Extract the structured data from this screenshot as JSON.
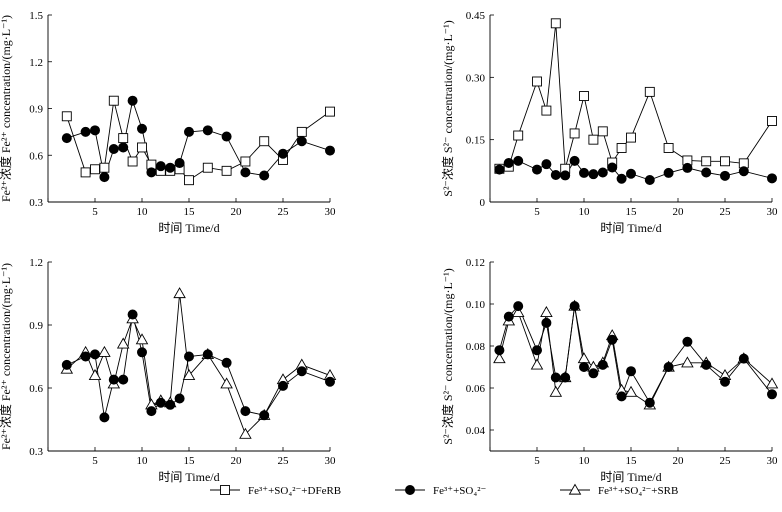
{
  "chart_data": [
    {
      "type": "line",
      "panel": "top-left",
      "xlabel": "时间 Time/d",
      "ylabel": "Fe²⁺浓度 Fe²⁺ concentration/(mg·L⁻¹)",
      "xlim": [
        0,
        30
      ],
      "ylim": [
        0.3,
        1.5
      ],
      "xticks": [
        0,
        5,
        10,
        15,
        20,
        25,
        30
      ],
      "yticks": [
        0.3,
        0.6,
        0.9,
        1.2,
        1.5
      ],
      "ytick_labels": [
        "0.3",
        "0.6",
        "0.9",
        "1.2",
        "1.5"
      ],
      "series": [
        {
          "name": "Fe³⁺+SO₄²⁻+DFeRB",
          "marker": "square",
          "x": [
            2,
            4,
            5,
            6,
            7,
            8,
            9,
            10,
            11,
            12,
            13,
            14,
            15,
            17,
            19,
            21,
            23,
            25,
            27,
            30
          ],
          "y": [
            0.85,
            0.49,
            0.51,
            0.52,
            0.95,
            0.71,
            0.56,
            0.65,
            0.54,
            0.5,
            0.5,
            0.51,
            0.44,
            0.52,
            0.5,
            0.56,
            0.69,
            0.57,
            0.75,
            0.88
          ]
        },
        {
          "name": "Fe³⁺+SO₄²⁻",
          "marker": "circle",
          "x": [
            2,
            4,
            5,
            6,
            7,
            8,
            9,
            10,
            11,
            12,
            13,
            14,
            15,
            17,
            19,
            21,
            23,
            25,
            27,
            30
          ],
          "y": [
            0.71,
            0.75,
            0.76,
            0.46,
            0.64,
            0.65,
            0.95,
            0.77,
            0.49,
            0.53,
            0.52,
            0.55,
            0.75,
            0.76,
            0.72,
            0.49,
            0.47,
            0.61,
            0.69,
            0.63
          ]
        }
      ]
    },
    {
      "type": "line",
      "panel": "top-right",
      "xlabel": "时间 Time/d",
      "ylabel": "S²⁻浓度 S²⁻ concentration/(mg·L⁻¹)",
      "xlim": [
        0,
        30
      ],
      "ylim": [
        0,
        0.45
      ],
      "xticks": [
        0,
        5,
        10,
        15,
        20,
        25,
        30
      ],
      "yticks": [
        0,
        0.15,
        0.3,
        0.45
      ],
      "ytick_labels": [
        "0",
        "0.15",
        "0.30",
        "0.45"
      ],
      "series": [
        {
          "name": "Fe³⁺+SO₄²⁻+DFeRB",
          "marker": "square",
          "x": [
            1,
            2,
            3,
            5,
            6,
            7,
            8,
            9,
            10,
            11,
            12,
            13,
            14,
            15,
            17,
            19,
            21,
            23,
            25,
            27,
            30
          ],
          "y": [
            0.08,
            0.085,
            0.16,
            0.29,
            0.22,
            0.43,
            0.08,
            0.165,
            0.255,
            0.15,
            0.17,
            0.095,
            0.13,
            0.155,
            0.265,
            0.13,
            0.1,
            0.098,
            0.098,
            0.093,
            0.195
          ]
        },
        {
          "name": "Fe³⁺+SO₄²⁻",
          "marker": "circle",
          "x": [
            1,
            2,
            3,
            5,
            6,
            7,
            8,
            9,
            10,
            11,
            12,
            13,
            14,
            15,
            17,
            19,
            21,
            23,
            25,
            27,
            30
          ],
          "y": [
            0.078,
            0.094,
            0.099,
            0.078,
            0.091,
            0.065,
            0.064,
            0.099,
            0.07,
            0.067,
            0.071,
            0.083,
            0.056,
            0.068,
            0.053,
            0.07,
            0.082,
            0.071,
            0.063,
            0.074,
            0.057
          ]
        }
      ]
    },
    {
      "type": "line",
      "panel": "bottom-left",
      "xlabel": "时间 Time/d",
      "ylabel": "Fe²⁺浓度 Fe²⁺ concentration/(mg·L⁻¹)",
      "xlim": [
        0,
        30
      ],
      "ylim": [
        0.3,
        1.2
      ],
      "xticks": [
        0,
        5,
        10,
        15,
        20,
        25,
        30
      ],
      "yticks": [
        0.3,
        0.6,
        0.9,
        1.2
      ],
      "ytick_labels": [
        "0.3",
        "0.6",
        "0.9",
        "1.2"
      ],
      "series": [
        {
          "name": "Fe³⁺+SO₄²⁻+SRB",
          "marker": "triangle",
          "x": [
            2,
            4,
            5,
            6,
            7,
            8,
            9,
            10,
            11,
            12,
            13,
            14,
            15,
            17,
            19,
            21,
            23,
            25,
            27,
            30
          ],
          "y": [
            0.69,
            0.77,
            0.66,
            0.77,
            0.62,
            0.81,
            0.93,
            0.83,
            0.52,
            0.54,
            0.53,
            1.05,
            0.66,
            0.76,
            0.62,
            0.38,
            0.47,
            0.64,
            0.71,
            0.66
          ]
        },
        {
          "name": "Fe³⁺+SO₄²⁻",
          "marker": "circle",
          "x": [
            2,
            4,
            5,
            6,
            7,
            8,
            9,
            10,
            11,
            12,
            13,
            14,
            15,
            17,
            19,
            21,
            23,
            25,
            27,
            30
          ],
          "y": [
            0.71,
            0.75,
            0.76,
            0.46,
            0.64,
            0.64,
            0.95,
            0.77,
            0.49,
            0.53,
            0.52,
            0.55,
            0.75,
            0.76,
            0.72,
            0.49,
            0.47,
            0.61,
            0.68,
            0.63
          ]
        }
      ]
    },
    {
      "type": "line",
      "panel": "bottom-right",
      "xlabel": "时间 Time/d",
      "ylabel": "S²⁻浓度 S²⁻ concentration/(mg·L⁻¹)",
      "xlim": [
        0,
        30
      ],
      "ylim": [
        0.03,
        0.12
      ],
      "xticks": [
        0,
        5,
        10,
        15,
        20,
        25,
        30
      ],
      "yticks": [
        0.04,
        0.06,
        0.08,
        0.1,
        0.12
      ],
      "ytick_labels": [
        "0.04",
        "0.06",
        "0.08",
        "0.10",
        "0.12"
      ],
      "series": [
        {
          "name": "Fe³⁺+SO₄²⁻+SRB",
          "marker": "triangle",
          "x": [
            1,
            2,
            3,
            5,
            6,
            7,
            8,
            9,
            10,
            11,
            12,
            13,
            14,
            15,
            17,
            19,
            21,
            23,
            25,
            27,
            30
          ],
          "y": [
            0.074,
            0.092,
            0.096,
            0.071,
            0.096,
            0.058,
            0.065,
            0.099,
            0.074,
            0.07,
            0.072,
            0.085,
            0.059,
            0.058,
            0.052,
            0.07,
            0.072,
            0.072,
            0.066,
            0.074,
            0.062
          ]
        },
        {
          "name": "Fe³⁺+SO₄²⁻",
          "marker": "circle",
          "x": [
            1,
            2,
            3,
            5,
            6,
            7,
            8,
            9,
            10,
            11,
            12,
            13,
            14,
            15,
            17,
            19,
            21,
            23,
            25,
            27,
            30
          ],
          "y": [
            0.078,
            0.094,
            0.099,
            0.078,
            0.091,
            0.065,
            0.065,
            0.099,
            0.07,
            0.067,
            0.071,
            0.083,
            0.056,
            0.068,
            0.053,
            0.07,
            0.082,
            0.071,
            0.063,
            0.074,
            0.057
          ]
        }
      ]
    }
  ],
  "legend": {
    "position": "bottom-center",
    "entries": [
      {
        "marker": "square",
        "label": "Fe³⁺+SO₄²⁻+DFeRB"
      },
      {
        "marker": "circle",
        "label": "Fe³⁺+SO₄²⁻"
      },
      {
        "marker": "triangle",
        "label": "Fe³⁺+SO₄²⁻+SRB"
      }
    ]
  }
}
